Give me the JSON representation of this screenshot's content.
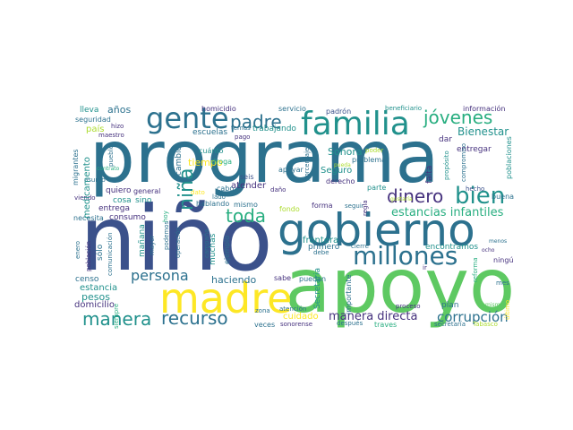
{
  "colors": {
    "background": "#ffffff",
    "purple": "#46327e",
    "indigo": "#3b518b",
    "blue": "#2c718e",
    "teal": "#21918c",
    "green": "#28ae80",
    "lime": "#5ec962",
    "yellowgreen": "#addc30",
    "yellow": "#fde725"
  },
  "words": {
    "programa": "programa",
    "nino": "niño",
    "apoyo": "apoyo",
    "gobierno": "gobierno",
    "madre": "madre",
    "familia": "familia",
    "gente": "gente",
    "millones": "millones",
    "bien": "bien",
    "jovenes": "jóvenes",
    "dinero": "dinero",
    "padre": "padre",
    "toda": "toda",
    "manera": "manera",
    "recurso": "recurso",
    "nina": "niña",
    "persona": "persona",
    "corrupcion": "corrupción",
    "estancias_infantiles": "estancias infantiles",
    "manera_directa": "manera directa",
    "bienestar": "Bienestar",
    "anos": "años",
    "lleva": "lleva",
    "seguridad": "seguridad",
    "pais": "país",
    "maestro": "maestro",
    "hizo": "hizo",
    "escuelas": "escuelas",
    "homicidio": "homicidio",
    "servicio": "servicio",
    "padron": "padrón",
    "beneficiario": "beneficiario",
    "informacion": "información",
    "temas": "temas",
    "trabajando": "trabajando",
    "dar": "dar",
    "pago": "pago",
    "migrantes": "migrantes",
    "medicamento": "medicamento",
    "pueblo": "pueblo",
    "cambio": "cambio",
    "tiempo": "tiempo",
    "droga": "droga",
    "cuanto": "cuánto",
    "poder": "poder",
    "sonora": "Sonora",
    "problema": "problema",
    "apoyar": "apoyar",
    "seis": "seis",
    "porcentaje": "porcentaje",
    "atender": "atender",
    "seguro": "Seguro",
    "derecho": "derecho",
    "falta": "falta",
    "parte": "parte",
    "entregar": "entregar",
    "poblaciones": "poblaciones",
    "compromiso": "compromiso",
    "proposito": "propósito",
    "hecho": "hecho",
    "buena": "buena",
    "pueda": "pueda",
    "gustaria": "gustaría",
    "quiero": "quiero",
    "general": "general",
    "cabo": "cabo",
    "dano": "daño",
    "dato": "dato",
    "lado": "lado",
    "entrega": "entrega",
    "cosa": "cosa",
    "sino": "sino",
    "necesita": "necesita",
    "consumo": "consumo",
    "hablando": "hablando",
    "mismo": "mismo",
    "fondo": "fondo",
    "forma": "forma",
    "seguir": "seguir",
    "primero": "primero",
    "encontramos": "encontramos",
    "ningun": "ningún",
    "ocho": "ocho",
    "menos": "menos",
    "viendo": "viendo",
    "asunto": "asunto",
    "contrato": "contrato",
    "manana": "mañana",
    "mayor": "mayor",
    "enero": "enero",
    "poblacion": "población",
    "solo": "sólo",
    "comunicacion": "comunicación",
    "operacion": "operación",
    "podemos": "podemos",
    "hoy": "hoy",
    "campana": "campaña",
    "muchas": "muchas",
    "ejemplo": "ejemplo",
    "cierre": "cierre",
    "debe": "debe",
    "regla": "regla",
    "ir": "ir",
    "reforma": "reforma",
    "mes": "mes",
    "censo": "censo",
    "estancia": "estancia",
    "siempre": "siempre",
    "haciendo": "haciendo",
    "sabe": "sabe",
    "frontera": "frontera",
    "secretaria_v": "Secretaria",
    "importante": "importante",
    "pesos": "pesos",
    "domicilio": "domicilio",
    "cuidado": "cuidado",
    "zona": "zona",
    "atencion": "atención",
    "proceso": "proceso",
    "plan": "plan",
    "puedan": "puedan",
    "veces": "veces",
    "sonorense": "sonorense",
    "despues": "después",
    "traves": "traves",
    "secretaria": "secretaría",
    "tabasco": "Tabasco",
    "misma": "misma",
    "ultimo": "último"
  }
}
